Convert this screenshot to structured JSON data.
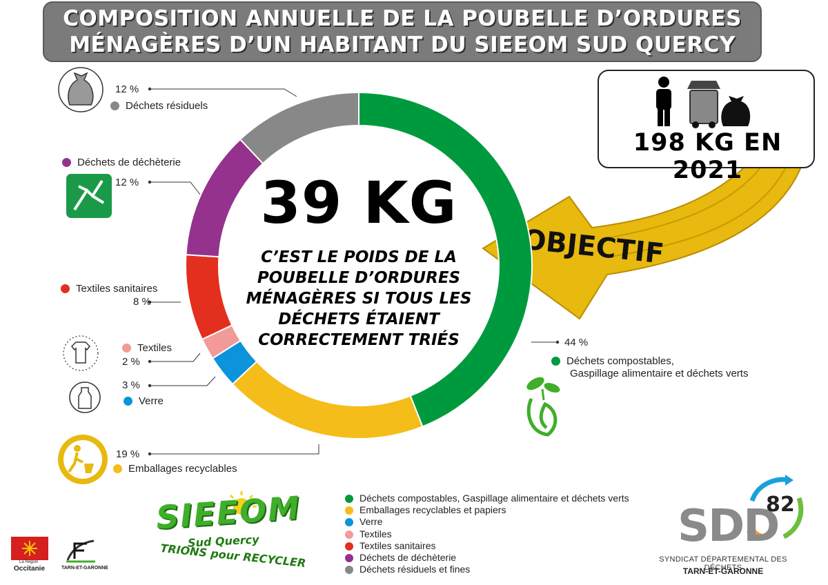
{
  "title": {
    "line1": "COMPOSITION ANNUELLE  DE LA POUBELLE D’ORDURES",
    "line2": "MÉNAGÈRES D’UN HABITANT DU SIEEOM SUD QUERCY"
  },
  "center": {
    "value": "39 KG",
    "text": [
      "C’EST LE POIDS DE LA",
      "POUBELLE D’ORDURES",
      "MÉNAGÈRES SI TOUS LES",
      "DÉCHETS ÉTAIENT",
      "CORRECTEMENT TRIÉS"
    ]
  },
  "objective": {
    "value": "198 KG EN 2021",
    "label": "OBJECTIF",
    "icons": [
      "person-icon",
      "wheelie-bin-icon",
      "trash-bag-icon"
    ]
  },
  "chart_data": {
    "type": "pie",
    "style": "donut",
    "series": [
      {
        "label": "Déchets compostables, Gaspillage alimentaire et déchets verts",
        "value": 44,
        "value_label": "44 %",
        "color": "#009a3e"
      },
      {
        "label": "Emballages recyclables",
        "value": 19,
        "value_label": "19 %",
        "color": "#f4bd19"
      },
      {
        "label": "Verre",
        "value": 3,
        "value_label": "3 %",
        "color": "#0b93dc"
      },
      {
        "label": "Textiles",
        "value": 2,
        "value_label": "2 %",
        "color": "#f29a98"
      },
      {
        "label": "Textiles sanitaires",
        "value": 8,
        "value_label": "8 %",
        "color": "#e3301e"
      },
      {
        "label": "Déchets de déchèterie",
        "value": 12,
        "value_label": "12 %",
        "color": "#94328d"
      },
      {
        "label": "Déchets résiduels",
        "value": 12,
        "value_label": "12 %",
        "color": "#888888"
      }
    ]
  },
  "callouts": {
    "compost": {
      "pct": "44 %",
      "line1": "Déchets compostables,",
      "line2": "Gaspillage alimentaire et déchets verts"
    },
    "emballages": {
      "pct": "19 %",
      "name": "Emballages recyclables"
    },
    "verre": {
      "pct": "3 %",
      "name": "Verre"
    },
    "textiles": {
      "pct": "2 %",
      "name": "Textiles"
    },
    "sanitaires": {
      "pct": "8 %",
      "name": "Textiles sanitaires"
    },
    "decheterie": {
      "pct": "12 %",
      "name": "Déchets de déchèterie"
    },
    "residuels": {
      "pct": "12 %",
      "name": "Déchets résiduels"
    }
  },
  "legend": [
    {
      "label": "Déchets compostables, Gaspillage alimentaire et déchets verts",
      "color": "#009a3e"
    },
    {
      "label": "Emballages recyclables et papiers",
      "color": "#f4bd19"
    },
    {
      "label": "Verre",
      "color": "#0b93dc"
    },
    {
      "label": "Textiles",
      "color": "#f29a98"
    },
    {
      "label": "Textiles sanitaires",
      "color": "#e3301e"
    },
    {
      "label": "Déchets de déchèterie",
      "color": "#94328d"
    },
    {
      "label": "Déchets résiduels et fines",
      "color": "#888888"
    }
  ],
  "logos": {
    "sieeom": {
      "name": "SIEEOM",
      "sub": "Sud Quercy",
      "slogan": "TRIONS pour RECYCLER"
    },
    "sdd": {
      "name": "SDD",
      "number": "82",
      "line1": "SYNDICAT DÉPARTEMENTAL DES DÉCHETS",
      "line2": "TARN-ET-GARONNE"
    },
    "region": {
      "line1": "La Région",
      "line2": "Occitanie"
    },
    "department": {
      "name": "TARN-ET-GARONNE"
    }
  },
  "colors": {
    "banner": "#7b7b7b",
    "arrow": "#e8b90e",
    "compost_icon": "#3fae2a",
    "emballage_icon": "#e8b90e",
    "decheterie_icon": "#1a9a48"
  }
}
